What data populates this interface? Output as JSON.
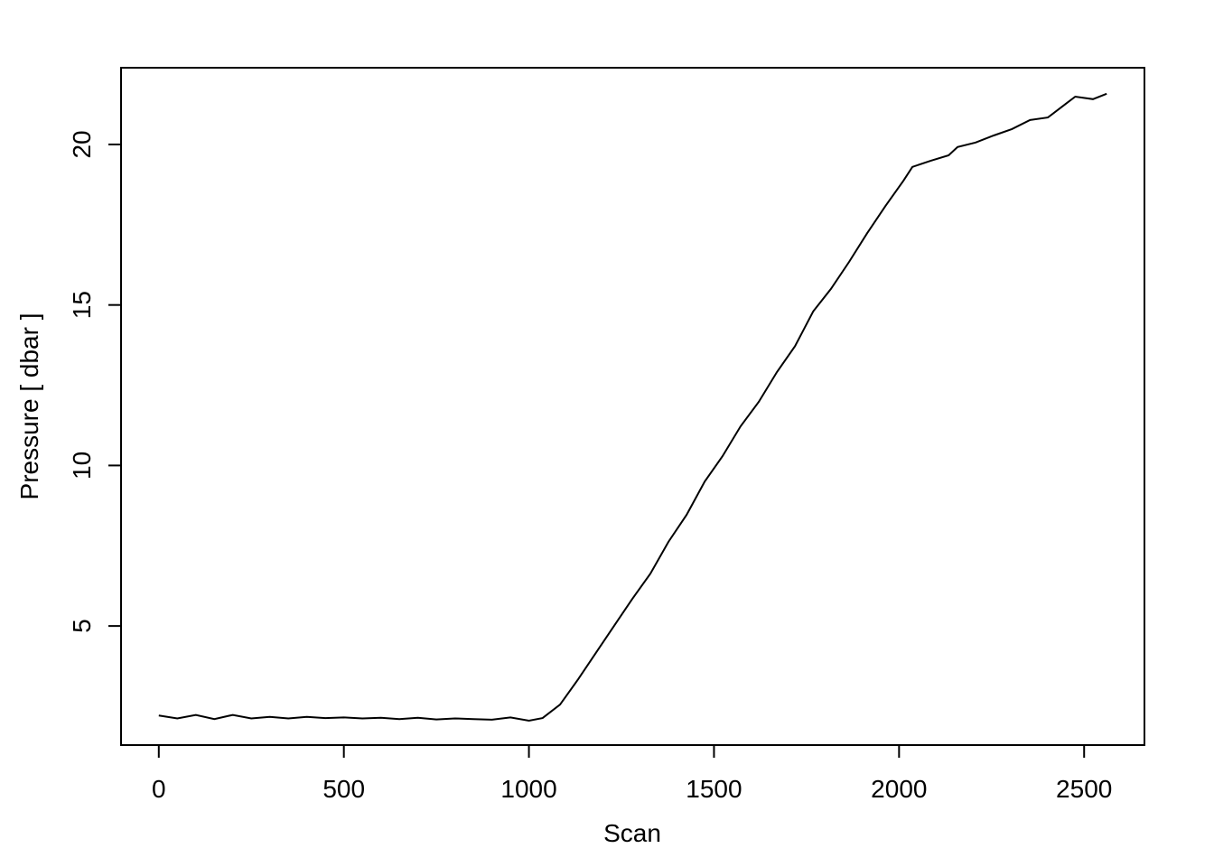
{
  "chart_data": {
    "type": "line",
    "title": "",
    "xlabel": "Scan",
    "ylabel": "Pressure [ dbar ]",
    "xlim": [
      -102,
      2663
    ],
    "ylim": [
      1.29,
      22.39
    ],
    "xticks": [
      0,
      500,
      1000,
      1500,
      2000,
      2500
    ],
    "yticks": [
      5,
      10,
      15,
      20
    ],
    "xtick_labels": [
      "0",
      "500",
      "1000",
      "1500",
      "2000",
      "2500"
    ],
    "ytick_labels": [
      "5",
      "10",
      "15",
      "20"
    ],
    "grid": false,
    "color": "#000000",
    "x": [
      0,
      50,
      100,
      150,
      200,
      250,
      300,
      350,
      400,
      450,
      500,
      550,
      600,
      650,
      700,
      750,
      800,
      850,
      900,
      950,
      1000,
      1037,
      1084,
      1133,
      1182,
      1230,
      1279,
      1328,
      1377,
      1426,
      1475,
      1523,
      1572,
      1621,
      1670,
      1719,
      1768,
      1816,
      1865,
      1914,
      1963,
      2012,
      2036,
      2085,
      2134,
      2158,
      2207,
      2256,
      2305,
      2354,
      2402,
      2451,
      2476,
      2524,
      2561
    ],
    "y": [
      2.21,
      2.12,
      2.23,
      2.1,
      2.23,
      2.12,
      2.17,
      2.12,
      2.17,
      2.13,
      2.15,
      2.12,
      2.14,
      2.1,
      2.14,
      2.09,
      2.12,
      2.1,
      2.08,
      2.15,
      2.05,
      2.13,
      2.55,
      3.34,
      4.18,
      5.0,
      5.84,
      6.63,
      7.62,
      8.46,
      9.5,
      10.29,
      11.22,
      11.98,
      12.91,
      13.72,
      14.8,
      15.5,
      16.34,
      17.24,
      18.08,
      18.87,
      19.3,
      19.49,
      19.66,
      19.92,
      20.06,
      20.28,
      20.48,
      20.76,
      20.84,
      21.27,
      21.49,
      21.41,
      21.58
    ]
  }
}
